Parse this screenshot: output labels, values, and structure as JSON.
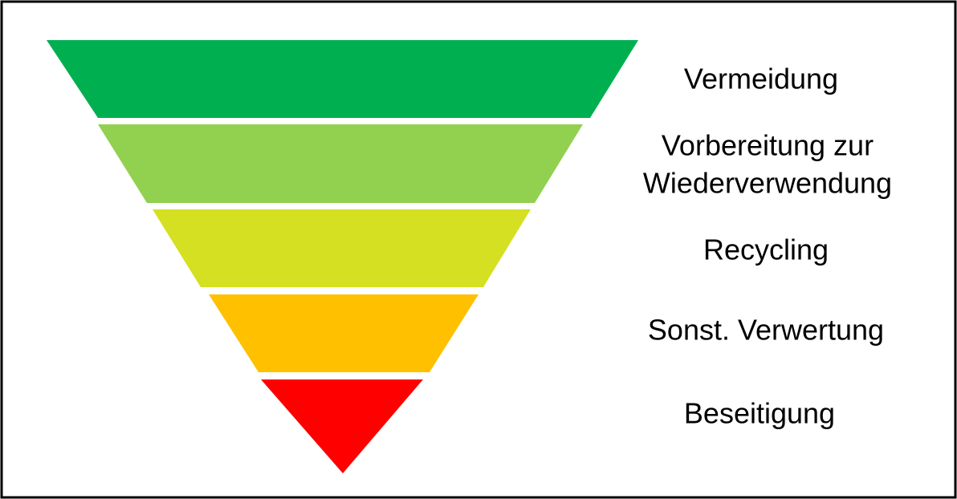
{
  "levels": [
    {
      "lines": [
        "Vermeidung"
      ]
    },
    {
      "lines": [
        "Vorbereitung zur",
        "Wiederverwendung"
      ]
    },
    {
      "lines": [
        "Recycling"
      ]
    },
    {
      "lines": [
        "Sonst. Verwertung"
      ]
    },
    {
      "lines": [
        "Beseitigung"
      ]
    }
  ]
}
